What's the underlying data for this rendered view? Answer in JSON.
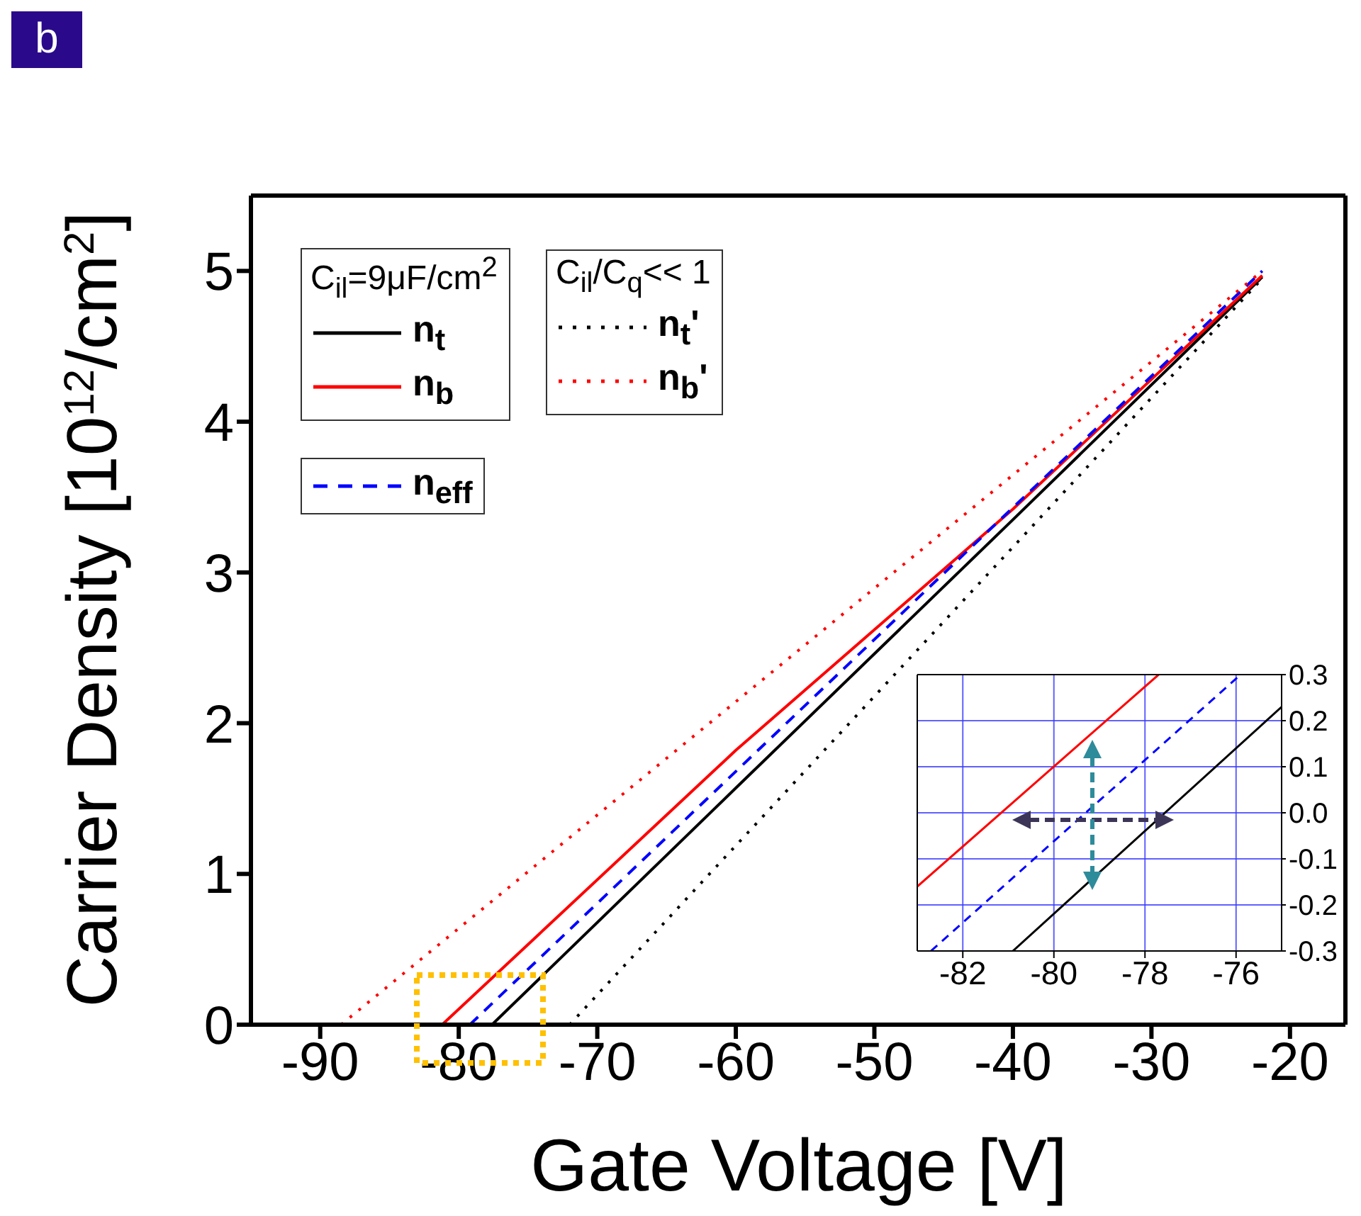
{
  "chart_data": [
    {
      "type": "line",
      "xlabel": "Gate Voltage [V]",
      "ylabel": "Carrier Density [10$^{12}$/cm$^{2}$]",
      "xlim": [
        -95,
        -16
      ],
      "ylim": [
        0,
        5.5
      ],
      "xticks": [
        -90,
        -80,
        -70,
        -60,
        -50,
        -40,
        -30,
        -20
      ],
      "yticks": [
        0,
        1,
        2,
        3,
        4,
        5
      ],
      "legend": "top left",
      "annotations": [
        "b",
        "C$_{il}$=9μF/cm$^{2}$",
        "C$_{il}$/C$_{q}$<< 1"
      ],
      "series": [
        {
          "name": "n$_{t}$",
          "color": "#000000",
          "line_style": "solid",
          "x": [
            -77.6,
            -60,
            -40,
            -22
          ],
          "values": [
            0,
            1.57,
            3.35,
            4.96
          ]
        },
        {
          "name": "n$_{b}$",
          "color": "#ff0000",
          "line_style": "solid",
          "x": [
            -81.2,
            -60,
            -40,
            -22
          ],
          "values": [
            0,
            1.82,
            3.42,
            4.97
          ]
        },
        {
          "name": "n$_{eff}$",
          "color": "#0000ff",
          "line_style": "dashed",
          "x": [
            -79.2,
            -60,
            -40,
            -22
          ],
          "values": [
            0,
            1.68,
            3.43,
            5.0
          ]
        },
        {
          "name": "n$_{t}$'",
          "color": "#000000",
          "line_style": "dotted",
          "x": [
            -72,
            -22
          ],
          "values": [
            0,
            4.95
          ]
        },
        {
          "name": "n$_{b}$'",
          "color": "#ff0000",
          "line_style": "dotted",
          "x": [
            -88.5,
            -22
          ],
          "values": [
            0,
            5.0
          ]
        }
      ]
    },
    {
      "type": "line",
      "xlim": [
        -83,
        -75
      ],
      "ylim": [
        -0.3,
        0.3
      ],
      "xticks": [
        -82,
        -80,
        -78,
        -76
      ],
      "yticks": [
        -0.3,
        -0.2,
        -0.1,
        {
          "value": 0,
          "label": "0.0"
        },
        0.1,
        0.2,
        0.3
      ],
      "grid": true,
      "series": [
        {
          "color": "#ff0000",
          "line_style": "solid",
          "x": [
            -83,
            -77.7
          ],
          "values": [
            -0.16,
            0.3
          ]
        },
        {
          "color": "#0000ff",
          "line_style": "dashed",
          "x": [
            -82.7,
            -75.9
          ],
          "values": [
            -0.3,
            0.3
          ]
        },
        {
          "color": "#000000",
          "line_style": "solid",
          "x": [
            -80.9,
            -75
          ],
          "values": [
            -0.3,
            0.23
          ]
        }
      ]
    }
  ]
}
